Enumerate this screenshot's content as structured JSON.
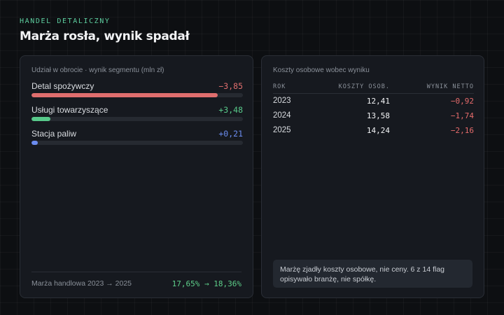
{
  "header": {
    "eyebrow": "HANDEL DETALICZNY",
    "title": "Marża rosła, wynik spadał"
  },
  "segments": {
    "label": "Udział w obrocie · wynik segmentu (mln zł)",
    "items": [
      {
        "name": "Detal spożywczy",
        "value": "−3,85",
        "share": 0.88,
        "color": "#e06e6e"
      },
      {
        "name": "Usługi towarzyszące",
        "value": "+3,48",
        "share": 0.09,
        "color": "#58c98a"
      },
      {
        "name": "Stacja paliw",
        "value": "+0,21",
        "share": 0.03,
        "color": "#6b8cf0"
      }
    ],
    "footer": {
      "label": "Marża handlowa 2023 → 2025",
      "value": "17,65% → 18,36%"
    }
  },
  "costs": {
    "label": "Koszty osobowe wobec wyniku",
    "columns": [
      "ROK",
      "KOSZTY OSOB.",
      "WYNIK NETTO"
    ],
    "rows": [
      {
        "year": "2023",
        "costs": "12,41",
        "result": "−0,92"
      },
      {
        "year": "2024",
        "costs": "13,58",
        "result": "−1,74"
      },
      {
        "year": "2025",
        "costs": "14,24",
        "result": "−2,16"
      }
    ],
    "note": "Marżę zjadły koszty osobowe, nie ceny. 6 z 14 flag opisywało branżę, nie spółkę."
  }
}
